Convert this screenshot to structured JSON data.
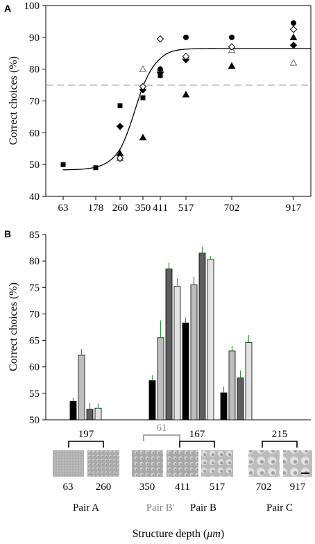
{
  "figure": {
    "panel_a_letter": "A",
    "panel_b_letter": "B",
    "xlabel_prefix": "Structure depth (",
    "xlabel_unit": "μm",
    "xlabel_suffix": ")"
  },
  "chart_data": [
    {
      "id": "A",
      "type": "scatter",
      "ylabel": "Correct choices (%)",
      "xlabel": "",
      "ylim": [
        40,
        100
      ],
      "yticks": [
        40,
        50,
        60,
        70,
        80,
        90,
        100
      ],
      "xticks": [
        63,
        178,
        260,
        350,
        411,
        517,
        702,
        917
      ],
      "grid": false,
      "reference_line_y": 75,
      "series": [
        {
          "marker": "square-filled",
          "x": [
            63,
            178,
            260,
            350,
            411
          ],
          "y": [
            50,
            49,
            68.5,
            71,
            78
          ]
        },
        {
          "marker": "diamond-filled",
          "x": [
            260,
            350,
            411,
            517,
            917
          ],
          "y": [
            62,
            73.5,
            79,
            83,
            87.5
          ]
        },
        {
          "marker": "triangle-filled",
          "x": [
            260,
            350,
            517,
            702,
            917
          ],
          "y": [
            53.5,
            58.5,
            72,
            81,
            90
          ]
        },
        {
          "marker": "triangle-open",
          "x": [
            260,
            350,
            411,
            517,
            702,
            917
          ],
          "y": [
            52,
            80,
            80,
            84,
            86,
            82
          ]
        },
        {
          "marker": "diamond-open",
          "x": [
            260,
            350,
            411,
            517,
            702,
            917
          ],
          "y": [
            52,
            74.5,
            89.5,
            84,
            87,
            92.5
          ]
        },
        {
          "marker": "circle-filled",
          "x": [
            411,
            517,
            702,
            917
          ],
          "y": [
            80,
            90,
            90,
            94.5
          ]
        }
      ],
      "fit_curve": {
        "bottom": 48.3,
        "top": 86.5,
        "x50": 320,
        "slope_scale": 38
      }
    },
    {
      "id": "B",
      "type": "bar",
      "ylabel": "Correct choices (%)",
      "ylim": [
        50,
        85
      ],
      "yticks": [
        50,
        55,
        60,
        65,
        70,
        75,
        80,
        85
      ],
      "groups": [
        {
          "values": [
            53.5,
            62.2,
            52.0,
            52.2
          ],
          "errors": [
            0.7,
            1.2,
            1.2,
            0.9
          ]
        },
        {
          "values": [
            57.4,
            65.5,
            78.5,
            75.2,
            68.3,
            75.5,
            81.5,
            80.3
          ],
          "errors": [
            1.0,
            3.3,
            1.2,
            1.5,
            1.0,
            1.5,
            1.2,
            0.6
          ]
        },
        {
          "values": [
            55.1,
            63.0,
            57.9,
            64.6
          ],
          "errors": [
            1.2,
            0.9,
            1.4,
            1.4
          ]
        }
      ],
      "bar_colors": [
        "#000000",
        "#bdbdbd",
        "#5e5e5e",
        "#e3e3e3"
      ],
      "error_color": "#2e9a32",
      "brackets": [
        {
          "label": "197",
          "color": "#000000"
        },
        {
          "label": "61",
          "color": "#8a8a8a"
        },
        {
          "label": "167",
          "color": "#000000"
        },
        {
          "label": "215",
          "color": "#000000"
        }
      ],
      "samples": [
        "63",
        "260",
        "350",
        "411",
        "517",
        "702",
        "917"
      ],
      "pairs": [
        {
          "label": "Pair A",
          "color": "#000000"
        },
        {
          "label": "Pair B'",
          "color": "#808080"
        },
        {
          "label": "Pair B",
          "color": "#000000"
        },
        {
          "label": "Pair C",
          "color": "#000000"
        }
      ]
    }
  ]
}
